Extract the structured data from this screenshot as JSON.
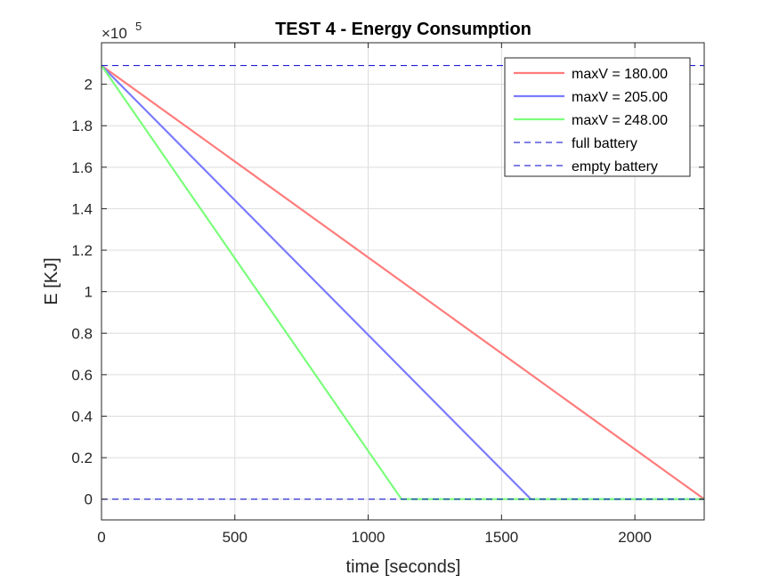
{
  "chart_data": {
    "type": "line",
    "title": "TEST 4 - Energy Consumption",
    "xlabel": "time [seconds]",
    "ylabel": "E [KJ]",
    "y_exponent_base": "×10",
    "y_exponent_power": "5",
    "xlim": [
      0,
      2260
    ],
    "ylim": [
      -10000,
      220000
    ],
    "x_ticks": [
      0,
      500,
      1000,
      1500,
      2000
    ],
    "x_tick_labels": [
      "0",
      "500",
      "1000",
      "1500",
      "2000"
    ],
    "y_ticks": [
      0,
      20000,
      40000,
      60000,
      80000,
      100000,
      120000,
      140000,
      160000,
      180000,
      200000
    ],
    "y_tick_labels": [
      "0",
      "0.2",
      "0.4",
      "0.6",
      "0.8",
      "1",
      "1.2",
      "1.4",
      "1.6",
      "1.8",
      "2"
    ],
    "grid": true,
    "legend_position": "top-right",
    "series": [
      {
        "name": "maxV = 180.00",
        "color": "#ff7b7b",
        "style": "solid",
        "x": [
          0,
          2260
        ],
        "y": [
          209000,
          0
        ]
      },
      {
        "name": "maxV = 205.00",
        "color": "#7b7bff",
        "style": "solid",
        "x": [
          0,
          1610,
          2260
        ],
        "y": [
          209000,
          0,
          0
        ]
      },
      {
        "name": "maxV = 248.00",
        "color": "#7bff7b",
        "style": "solid",
        "x": [
          0,
          1125,
          2260
        ],
        "y": [
          209000,
          0,
          0
        ]
      },
      {
        "name": "full battery",
        "color": "#0000cc",
        "style": "dashed",
        "x": [
          0,
          2260
        ],
        "y": [
          209000,
          209000
        ]
      },
      {
        "name": "empty battery",
        "color": "#0000cc",
        "style": "dashed",
        "x": [
          0,
          2260
        ],
        "y": [
          0,
          0
        ]
      }
    ]
  }
}
